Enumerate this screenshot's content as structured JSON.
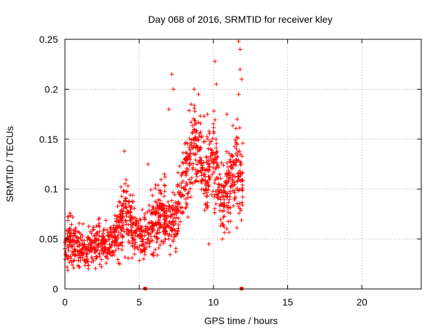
{
  "chart_data": {
    "type": "scatter",
    "title": "Day 068 of 2016, SRMTID for receiver kley",
    "xlabel": "GPS time / hours",
    "ylabel": "SRMTID / TECUs",
    "xlim": [
      0,
      24
    ],
    "ylim": [
      0,
      0.25
    ],
    "xticks": [
      0,
      5,
      10,
      15,
      20
    ],
    "xtick_labels": [
      "0",
      "5",
      "10",
      "15",
      "20"
    ],
    "yticks": [
      0,
      0.05,
      0.1,
      0.15,
      0.2,
      0.25
    ],
    "ytick_labels": [
      "0",
      "0.05",
      "0.1",
      "0.15",
      "0.2",
      "0.25"
    ],
    "grid": true,
    "marker": "+",
    "series_color": "#ff0000",
    "floor_markers_x": [
      5.4,
      11.9
    ],
    "trend": [
      {
        "x": 0.0,
        "y": 0.045,
        "spread": 0.012
      },
      {
        "x": 0.5,
        "y": 0.046,
        "spread": 0.013
      },
      {
        "x": 1.0,
        "y": 0.04,
        "spread": 0.011
      },
      {
        "x": 1.5,
        "y": 0.039,
        "spread": 0.011
      },
      {
        "x": 2.0,
        "y": 0.045,
        "spread": 0.012
      },
      {
        "x": 2.5,
        "y": 0.043,
        "spread": 0.012
      },
      {
        "x": 3.0,
        "y": 0.042,
        "spread": 0.011
      },
      {
        "x": 3.5,
        "y": 0.055,
        "spread": 0.014
      },
      {
        "x": 4.0,
        "y": 0.08,
        "spread": 0.02
      },
      {
        "x": 4.5,
        "y": 0.062,
        "spread": 0.015
      },
      {
        "x": 5.0,
        "y": 0.055,
        "spread": 0.013
      },
      {
        "x": 5.5,
        "y": 0.052,
        "spread": 0.012
      },
      {
        "x": 6.0,
        "y": 0.07,
        "spread": 0.016
      },
      {
        "x": 6.5,
        "y": 0.075,
        "spread": 0.018
      },
      {
        "x": 7.0,
        "y": 0.065,
        "spread": 0.016
      },
      {
        "x": 7.5,
        "y": 0.075,
        "spread": 0.018
      },
      {
        "x": 8.0,
        "y": 0.105,
        "spread": 0.022
      },
      {
        "x": 8.5,
        "y": 0.13,
        "spread": 0.025
      },
      {
        "x": 9.0,
        "y": 0.145,
        "spread": 0.025
      },
      {
        "x": 9.5,
        "y": 0.11,
        "spread": 0.022
      },
      {
        "x": 10.0,
        "y": 0.135,
        "spread": 0.025
      },
      {
        "x": 10.5,
        "y": 0.085,
        "spread": 0.018
      },
      {
        "x": 11.0,
        "y": 0.1,
        "spread": 0.02
      },
      {
        "x": 11.5,
        "y": 0.125,
        "spread": 0.024
      },
      {
        "x": 12.0,
        "y": 0.1,
        "spread": 0.02
      }
    ],
    "outliers": [
      {
        "x": 4.0,
        "y": 0.138
      },
      {
        "x": 7.2,
        "y": 0.215
      },
      {
        "x": 7.3,
        "y": 0.2
      },
      {
        "x": 7.0,
        "y": 0.18
      },
      {
        "x": 8.5,
        "y": 0.185
      },
      {
        "x": 8.7,
        "y": 0.2
      },
      {
        "x": 9.0,
        "y": 0.195
      },
      {
        "x": 9.6,
        "y": 0.175
      },
      {
        "x": 10.1,
        "y": 0.228
      },
      {
        "x": 10.2,
        "y": 0.205
      },
      {
        "x": 10.9,
        "y": 0.175
      },
      {
        "x": 11.7,
        "y": 0.248
      },
      {
        "x": 11.8,
        "y": 0.24
      },
      {
        "x": 11.8,
        "y": 0.22
      },
      {
        "x": 11.9,
        "y": 0.21
      },
      {
        "x": 11.7,
        "y": 0.195
      },
      {
        "x": 11.6,
        "y": 0.17
      },
      {
        "x": 5.6,
        "y": 0.125
      },
      {
        "x": 6.7,
        "y": 0.115
      },
      {
        "x": 9.7,
        "y": 0.045
      },
      {
        "x": 10.6,
        "y": 0.05
      },
      {
        "x": 3.7,
        "y": 0.025
      },
      {
        "x": 1.0,
        "y": 0.022
      },
      {
        "x": 5.3,
        "y": 0.03
      }
    ]
  }
}
